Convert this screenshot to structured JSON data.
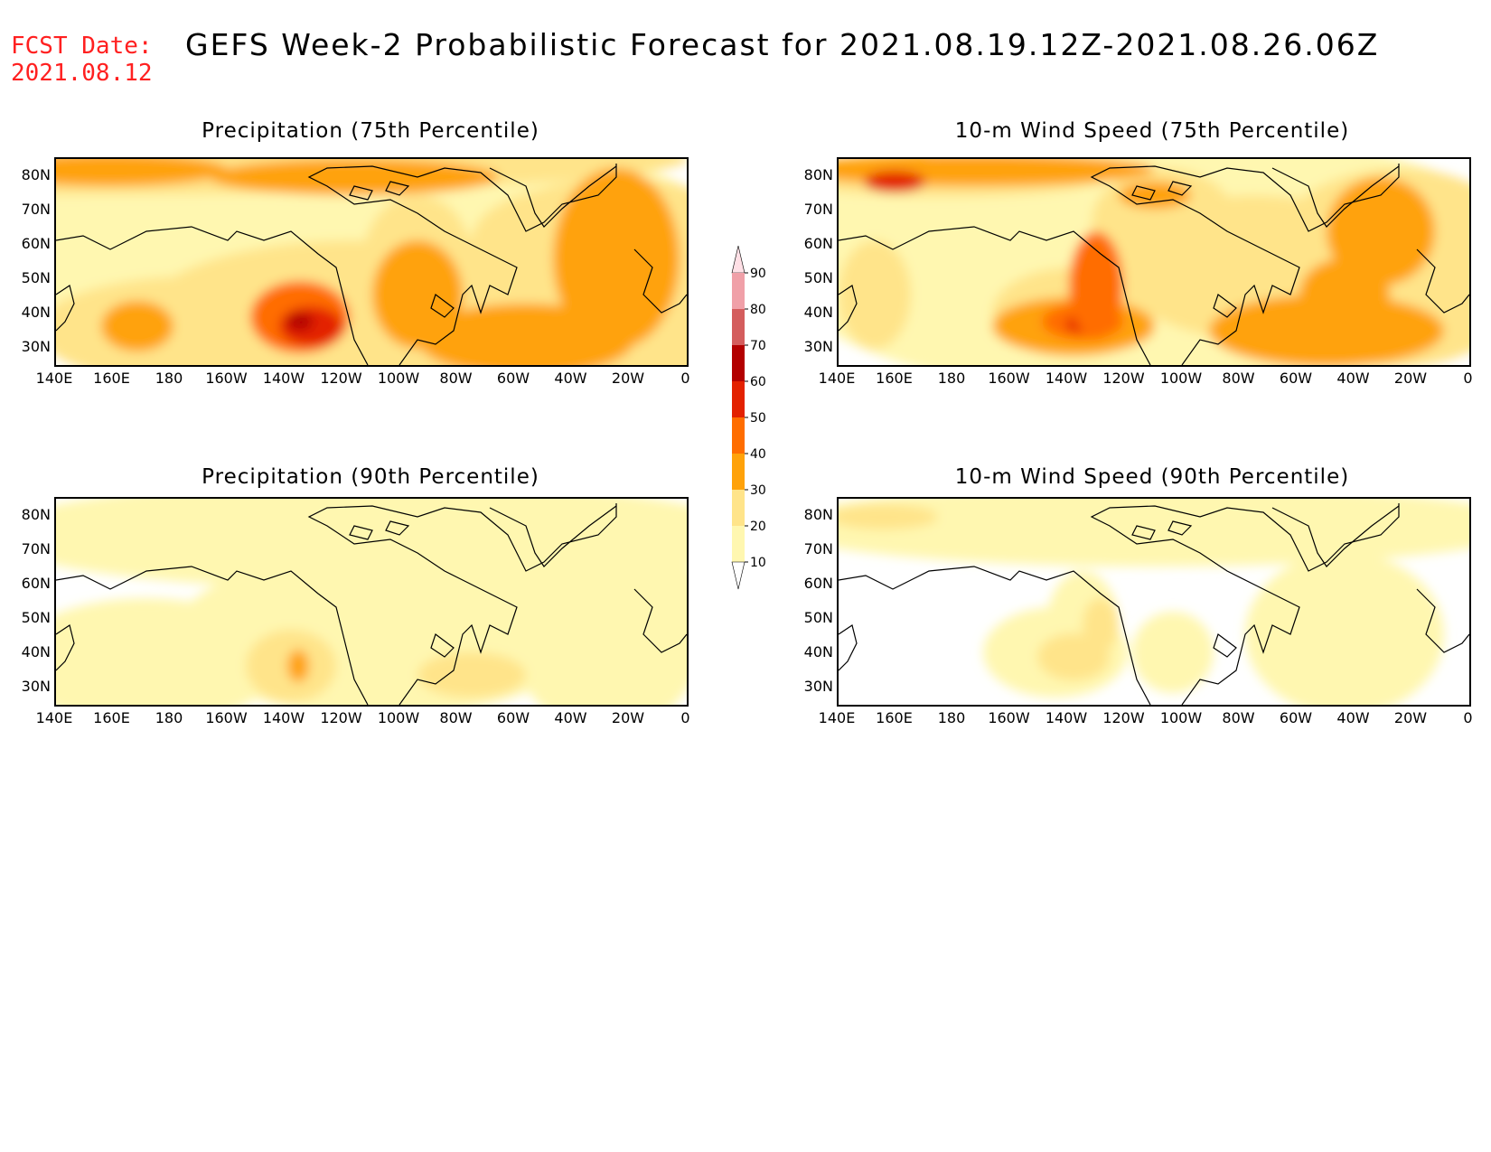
{
  "header": {
    "fcst_label": "FCST Date:",
    "fcst_date": "2021.08.12",
    "title": "GEFS Week-2 Probabilistic Forecast for 2021.08.19.12Z-2021.08.26.06Z"
  },
  "lat_labels": [
    "80N",
    "70N",
    "60N",
    "50N",
    "40N",
    "30N"
  ],
  "lon_labels": [
    "140E",
    "160E",
    "180",
    "160W",
    "140W",
    "120W",
    "100W",
    "80W",
    "60W",
    "40W",
    "20W",
    "0"
  ],
  "panels": [
    {
      "title": "Precipitation (75th Percentile)"
    },
    {
      "title": "10-m Wind Speed (75th Percentile)"
    },
    {
      "title": "Precipitation (90th Percentile)"
    },
    {
      "title": "10-m Wind Speed (90th Percentile)"
    }
  ],
  "colorbar": {
    "levels": [
      "10",
      "20",
      "30",
      "40",
      "50",
      "60",
      "70",
      "80",
      "90"
    ],
    "colors": [
      "#fff7b0",
      "#ffe48a",
      "#ffa20a",
      "#ff6d00",
      "#e32100",
      "#b30000",
      "#d45d5d",
      "#f0a0a8",
      "#ffe0e6"
    ]
  },
  "colors": {
    "fcst_text": "#ff2020",
    "ocean_background": "#ffffff",
    "coastline": "#000000"
  }
}
